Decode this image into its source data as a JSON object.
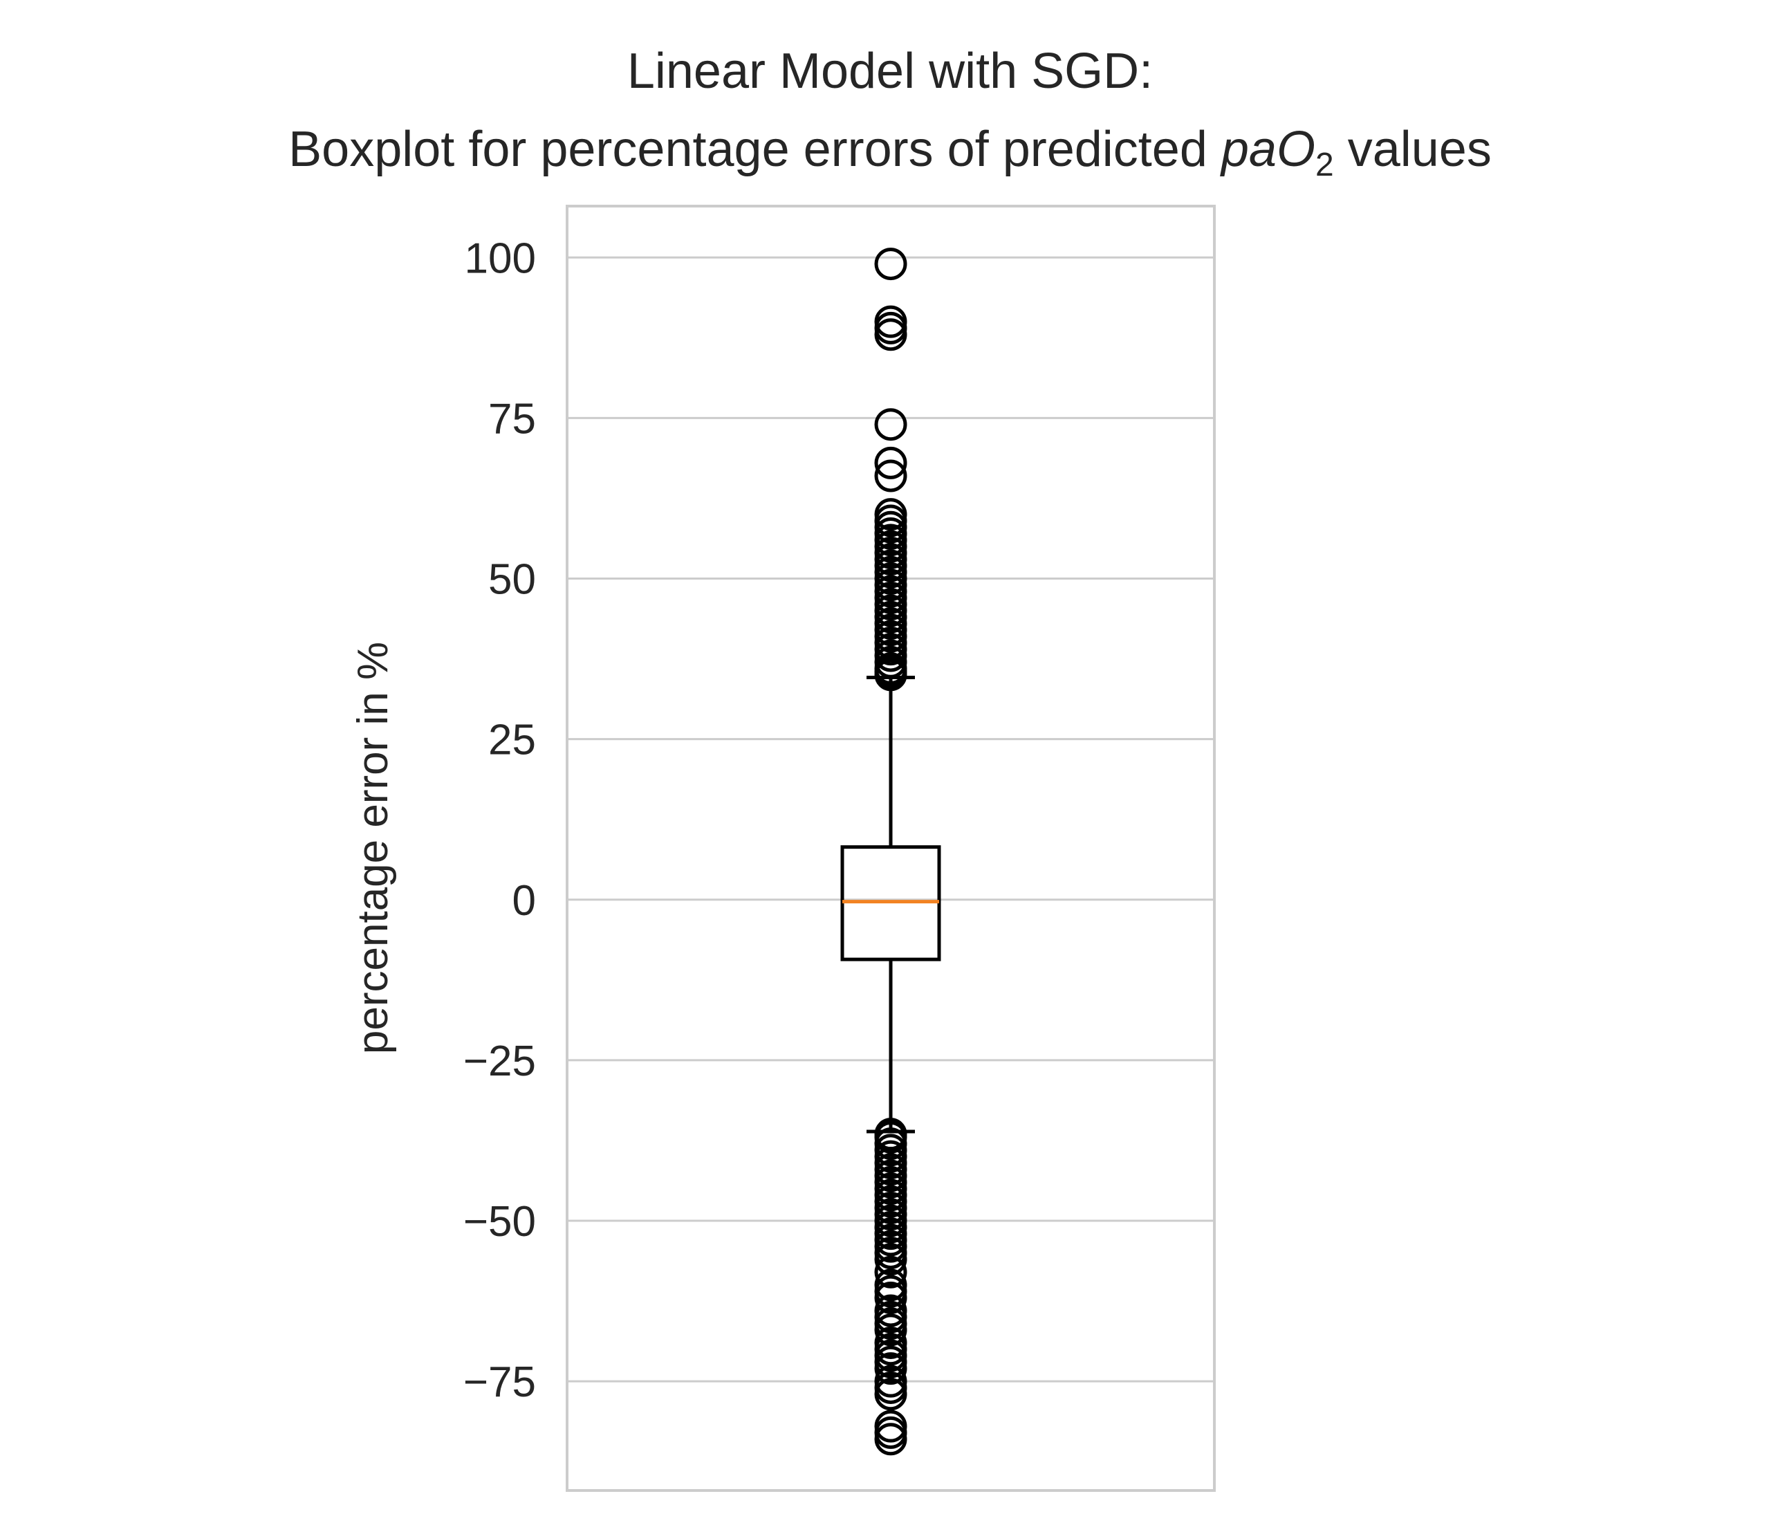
{
  "chart_data": {
    "type": "boxplot",
    "title_line1": "Linear Model with SGD:",
    "title_line2_prefix": "Boxplot for percentage errors of predicted ",
    "title_math_base": "paO",
    "title_math_sub": "2",
    "title_line2_suffix": " values",
    "xlabel": "",
    "ylabel": "percentage error in %",
    "ylim": [
      -92,
      108
    ],
    "yticks": [
      100,
      75,
      50,
      25,
      0,
      -25,
      -50,
      -75
    ],
    "ytick_labels": [
      "100",
      "75",
      "50",
      "25",
      "0",
      "−25",
      "−50",
      "−75"
    ],
    "grid": "horizontal",
    "box": {
      "median": -0.3,
      "q1": -9.3,
      "q3": 8.2,
      "whisker_low": -36.1,
      "whisker_high": 34.6
    },
    "outliers": [
      99,
      90,
      89,
      88,
      74,
      68,
      66,
      60,
      59,
      58,
      57,
      56,
      55,
      54,
      53,
      52,
      51,
      50,
      49,
      48,
      47,
      46,
      45,
      44,
      43,
      42,
      41,
      40,
      39,
      38,
      37,
      36,
      35.5,
      35,
      -36.5,
      -37,
      -38,
      -39,
      -40,
      -41,
      -42,
      -43,
      -44,
      -45,
      -46,
      -47,
      -48,
      -49,
      -50,
      -51,
      -52,
      -53,
      -54,
      -55,
      -56,
      -58,
      -60,
      -61,
      -62,
      -64,
      -65,
      -66,
      -67,
      -69,
      -70,
      -71,
      -72,
      -73,
      -75,
      -76,
      -77,
      -82,
      -83,
      -84
    ],
    "colors": {
      "box": "#000000",
      "median": "#f28222",
      "grid": "#cccccc",
      "frame": "#cccccc",
      "text": "#262626"
    }
  }
}
